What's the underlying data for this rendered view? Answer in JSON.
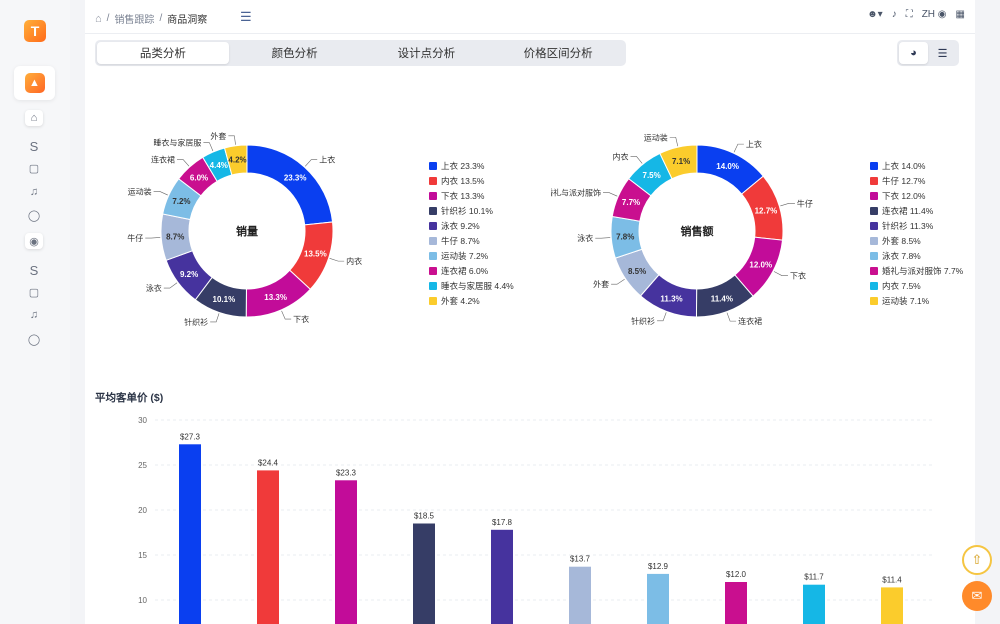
{
  "header": {
    "breadcrumb_parent": "销售跟踪",
    "breadcrumb_current": "商品洞察",
    "lang": "ZH"
  },
  "tabs": [
    {
      "label": "品类分析",
      "active": true
    },
    {
      "label": "颜色分析",
      "active": false
    },
    {
      "label": "设计点分析",
      "active": false
    },
    {
      "label": "价格区间分析",
      "active": false
    }
  ],
  "sidebar": {
    "logo_text": "T",
    "labels": [
      "S",
      "S"
    ]
  },
  "colors": {
    "上衣": "#0a3ff0",
    "内衣": "#f03a3a",
    "下衣": "#c20c99",
    "针织衫": "#363d66",
    "泳衣": "#46339e",
    "牛仔": "#a6b8d9",
    "运动装": "#7cbde6",
    "连衣裙": "#c90f8f",
    "睡衣与家居服": "#15b7e6",
    "外套": "#fbcc2c",
    "婚礼与派对服饰": "#c90f8f"
  },
  "chart_data": [
    {
      "type": "pie",
      "title": "销量",
      "labels": [
        "上衣",
        "内衣",
        "下衣",
        "针织衫",
        "泳衣",
        "牛仔",
        "运动装",
        "连衣裙",
        "睡衣与家居服",
        "外套"
      ],
      "values": [
        23.3,
        13.5,
        13.3,
        10.1,
        9.2,
        8.7,
        7.2,
        6.0,
        4.4,
        4.2
      ],
      "legend": [
        "上衣 23.3%",
        "内衣 13.5%",
        "下衣 13.3%",
        "针织衫 10.1%",
        "泳衣 9.2%",
        "牛仔 8.7%",
        "运动装 7.2%",
        "连衣裙 6.0%",
        "睡衣与家居服 4.4%",
        "外套 4.2%"
      ]
    },
    {
      "type": "pie",
      "title": "销售额",
      "labels": [
        "上衣",
        "牛仔",
        "下衣",
        "连衣裙",
        "针织衫",
        "外套",
        "泳衣",
        "婚礼与派对服饰",
        "内衣",
        "运动装"
      ],
      "values": [
        14.0,
        12.7,
        12.0,
        11.4,
        11.3,
        8.5,
        7.8,
        7.7,
        7.5,
        7.1
      ],
      "slice_colors": [
        "#0a3ff0",
        "#f03a3a",
        "#c20c99",
        "#363d66",
        "#46339e",
        "#a6b8d9",
        "#7cbde6",
        "#c90f8f",
        "#15b7e6",
        "#fbcc2c"
      ],
      "legend": [
        "上衣 14.0%",
        "牛仔 12.7%",
        "下衣 12.0%",
        "连衣裙 11.4%",
        "针织衫 11.3%",
        "外套 8.5%",
        "泳衣 7.8%",
        "婚礼与派对服饰 7.7%",
        "内衣 7.5%",
        "运动装 7.1%"
      ]
    },
    {
      "type": "bar",
      "title": "平均客单价 ($)",
      "values": [
        27.3,
        24.4,
        23.3,
        18.5,
        17.8,
        13.7,
        12.9,
        12.0,
        11.7,
        11.4
      ],
      "value_labels": [
        "$27.3",
        "$24.4",
        "$23.3",
        "$18.5",
        "$17.8",
        "$13.7",
        "$12.9",
        "$12.0",
        "$11.7",
        "$11.4"
      ],
      "bar_colors": [
        "#0a3ff0",
        "#f03a3a",
        "#c20c99",
        "#363d66",
        "#46339e",
        "#a6b8d9",
        "#7cbde6",
        "#c90f8f",
        "#15b7e6",
        "#fbcc2c"
      ],
      "yticks": [
        10,
        15,
        20,
        25,
        30
      ],
      "ylim": [
        0,
        30
      ],
      "grid": true
    }
  ]
}
